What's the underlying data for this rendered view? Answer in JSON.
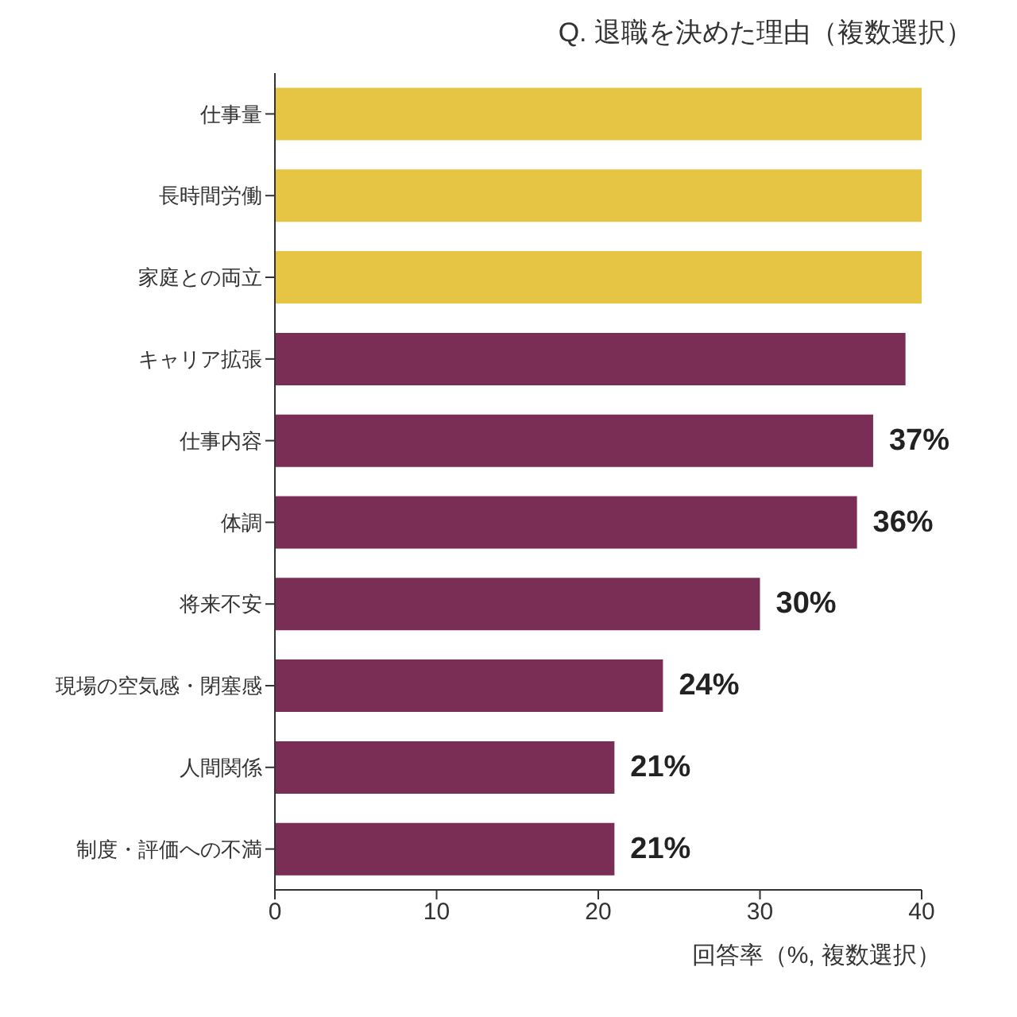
{
  "chart_data": {
    "type": "bar",
    "orientation": "horizontal",
    "title": "Q. 退職を決めた理由（複数選択）",
    "xlabel": "回答率（%, 複数選択）",
    "categories": [
      "仕事量",
      "長時間労働",
      "家庭との両立",
      "キャリア拡張",
      "仕事内容",
      "体調",
      "将来不安",
      "現場の空気感・閉塞感",
      "人間関係",
      "制度・評価への不満"
    ],
    "values": [
      40,
      40,
      40,
      39,
      37,
      36,
      30,
      24,
      21,
      21
    ],
    "colors": [
      "#e6c444",
      "#e6c444",
      "#e6c444",
      "#7a2d55",
      "#7a2d55",
      "#7a2d55",
      "#7a2d55",
      "#7a2d55",
      "#7a2d55",
      "#7a2d55"
    ],
    "value_labels": [
      null,
      null,
      null,
      null,
      "37%",
      "36%",
      "30%",
      "24%",
      "21%",
      "21%"
    ],
    "xlim": [
      0,
      40
    ],
    "xticks": [
      0,
      10,
      20,
      30,
      40
    ],
    "grid": false,
    "legend": false
  }
}
